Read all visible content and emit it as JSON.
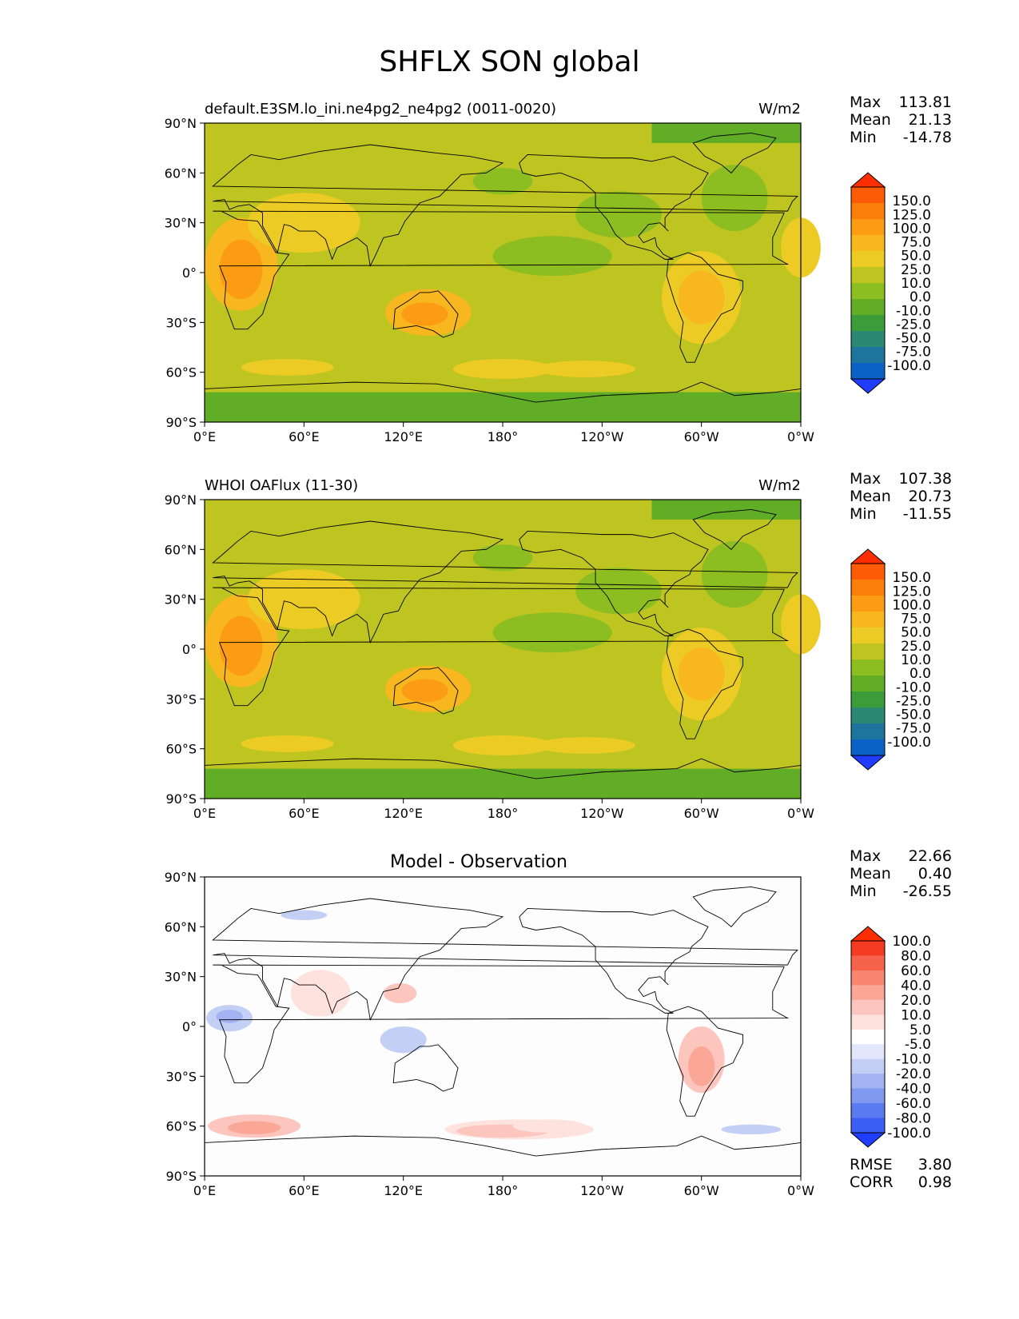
{
  "title": "SHFLX SON global",
  "lon_ticks": [
    "0°E",
    "60°E",
    "120°E",
    "180°",
    "120°W",
    "60°W",
    "0°W"
  ],
  "lat_ticks": [
    "90°N",
    "60°N",
    "30°N",
    "0°",
    "30°S",
    "60°S",
    "90°S"
  ],
  "stat_labels": {
    "max": "Max",
    "mean": "Mean",
    "min": "Min",
    "rmse": "RMSE",
    "corr": "CORR"
  },
  "colors": {
    "main": [
      "#1f3cff",
      "#0a62c6",
      "#1d749c",
      "#2b8872",
      "#3b9c3a",
      "#62ad26",
      "#8cbd21",
      "#bec520",
      "#eccb24",
      "#f8b71e",
      "#fb9c14",
      "#fc7e0a",
      "#fe5b06",
      "#ff2d00"
    ],
    "diff": [
      "#1f3cff",
      "#3b5ff5",
      "#5a7aef",
      "#7f98f0",
      "#a2b2f3",
      "#c4cff6",
      "#e2e7fb",
      "#ffffff",
      "#fde2de",
      "#fcc6be",
      "#fba797",
      "#f88472",
      "#f6624c",
      "#f33b24",
      "#ff2d00"
    ]
  },
  "chart_data": [
    {
      "type": "heatmap",
      "title": "default.E3SM.lo_ini.ne4pg2_ne4pg2 (0011-0020)",
      "units": "W/m2",
      "xlabel": "",
      "ylabel": "",
      "xlim": [
        0,
        360
      ],
      "ylim": [
        -90,
        90
      ],
      "stats": {
        "max": "113.81",
        "mean": "21.13",
        "min": "-14.78"
      },
      "colorbar_levels": [
        "150.0",
        "125.0",
        "100.0",
        "75.0",
        "50.0",
        "25.0",
        "10.0",
        "0.0",
        "-10.0",
        "-25.0",
        "-50.0",
        "-75.0",
        "-100.0"
      ]
    },
    {
      "type": "heatmap",
      "title": "WHOI OAFlux (11-30)",
      "units": "W/m2",
      "xlabel": "",
      "ylabel": "",
      "xlim": [
        0,
        360
      ],
      "ylim": [
        -90,
        90
      ],
      "stats": {
        "max": "107.38",
        "mean": "20.73",
        "min": "-11.55"
      },
      "colorbar_levels": [
        "150.0",
        "125.0",
        "100.0",
        "75.0",
        "50.0",
        "25.0",
        "10.0",
        "0.0",
        "-10.0",
        "-25.0",
        "-50.0",
        "-75.0",
        "-100.0"
      ]
    },
    {
      "type": "heatmap",
      "title": "Model - Observation",
      "units": "",
      "xlabel": "",
      "ylabel": "",
      "xlim": [
        0,
        360
      ],
      "ylim": [
        -90,
        90
      ],
      "stats": {
        "max": "22.66",
        "mean": "0.40",
        "min": "-26.55",
        "rmse": "3.80",
        "corr": "0.98"
      },
      "colorbar_levels": [
        "100.0",
        "80.0",
        "60.0",
        "40.0",
        "20.0",
        "10.0",
        "5.0",
        "-5.0",
        "-10.0",
        "-20.0",
        "-40.0",
        "-60.0",
        "-80.0",
        "-100.0"
      ]
    }
  ]
}
